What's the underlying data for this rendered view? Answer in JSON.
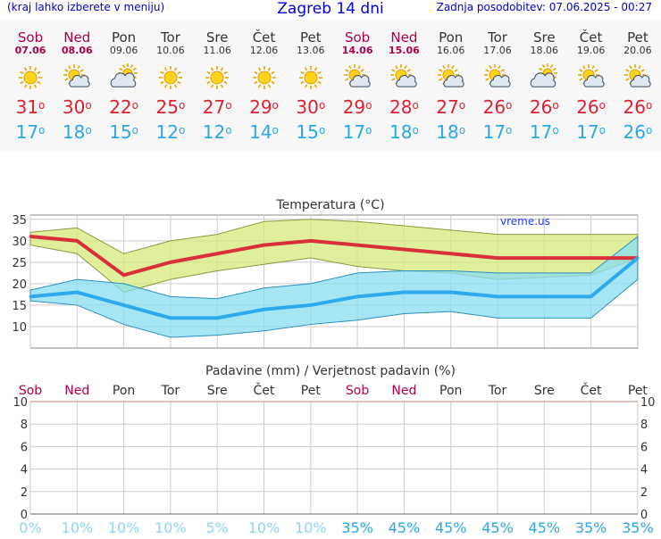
{
  "header": {
    "left_note": "(kraj lahko izberete v meniju)",
    "title": "Zagreb 14 dni",
    "updated": "Zadnja posodobitev: 07.06.2025 - 00:27"
  },
  "colors": {
    "weekend": "#b0004a",
    "max_line": "#d8303a",
    "min_line": "#2fa9ec",
    "max_band": "#d4ea7a",
    "min_band": "#88ddf0",
    "brand": "#1a3cff"
  },
  "days": [
    {
      "name": "Sob",
      "date": "07.06",
      "weekend": true,
      "icon": "sun-icon",
      "max": "31",
      "min": "17"
    },
    {
      "name": "Ned",
      "date": "08.06",
      "weekend": true,
      "icon": "sun-cloud-icon",
      "max": "30",
      "min": "18"
    },
    {
      "name": "Pon",
      "date": "09.06",
      "weekend": false,
      "icon": "cloud-sun-icon",
      "max": "22",
      "min": "15"
    },
    {
      "name": "Tor",
      "date": "10.06",
      "weekend": false,
      "icon": "sun-icon",
      "max": "25",
      "min": "12"
    },
    {
      "name": "Sre",
      "date": "11.06",
      "weekend": false,
      "icon": "sun-icon",
      "max": "27",
      "min": "12"
    },
    {
      "name": "Čet",
      "date": "12.06",
      "weekend": false,
      "icon": "sun-icon",
      "max": "29",
      "min": "14"
    },
    {
      "name": "Pet",
      "date": "13.06",
      "weekend": false,
      "icon": "sun-icon",
      "max": "30",
      "min": "15"
    },
    {
      "name": "Sob",
      "date": "14.06",
      "weekend": true,
      "icon": "sun-cloud-icon",
      "max": "29",
      "min": "17"
    },
    {
      "name": "Ned",
      "date": "15.06",
      "weekend": true,
      "icon": "sun-cloud-icon",
      "max": "28",
      "min": "18"
    },
    {
      "name": "Pon",
      "date": "16.06",
      "weekend": false,
      "icon": "sun-cloud-icon",
      "max": "27",
      "min": "18"
    },
    {
      "name": "Tor",
      "date": "17.06",
      "weekend": false,
      "icon": "sun-cloud-icon",
      "max": "26",
      "min": "17"
    },
    {
      "name": "Sre",
      "date": "18.06",
      "weekend": false,
      "icon": "cloud-sun-icon",
      "max": "26",
      "min": "17"
    },
    {
      "name": "Čet",
      "date": "19.06",
      "weekend": false,
      "icon": "sun-cloud-icon",
      "max": "26",
      "min": "17"
    },
    {
      "name": "Pet",
      "date": "20.06",
      "weekend": false,
      "icon": "sun-cloud-icon",
      "max": "26",
      "min": "26"
    }
  ],
  "degree_symbol": "o",
  "chart_data": [
    {
      "type": "line",
      "title": "Temperatura (°C)",
      "watermark": "vreme.us",
      "x": [
        "07.06",
        "08.06",
        "09.06",
        "10.06",
        "11.06",
        "12.06",
        "13.06",
        "14.06",
        "15.06",
        "16.06",
        "17.06",
        "18.06",
        "19.06",
        "20.06"
      ],
      "ylim": [
        5,
        36
      ],
      "yticks": [
        10,
        15,
        20,
        25,
        30,
        35
      ],
      "grid": true,
      "series": [
        {
          "role": "max",
          "values": [
            31,
            30,
            22,
            25,
            27,
            29,
            30,
            29,
            28,
            27,
            26,
            26,
            26,
            26
          ]
        },
        {
          "role": "max_band_high",
          "values": [
            32,
            33,
            27,
            30,
            31.5,
            34.5,
            35,
            34.5,
            33.5,
            32.5,
            31.5,
            31.5,
            31.5,
            31.5
          ]
        },
        {
          "role": "max_band_low",
          "values": [
            29,
            27,
            18,
            21,
            23,
            24.5,
            26,
            24,
            23,
            22.5,
            21,
            21.5,
            22,
            26
          ]
        },
        {
          "role": "min",
          "values": [
            17,
            18,
            15,
            12,
            12,
            14,
            15,
            17,
            18,
            18,
            17,
            17,
            17,
            26
          ]
        },
        {
          "role": "min_band_high",
          "values": [
            18.5,
            21,
            20,
            17,
            16.5,
            19,
            20,
            22.5,
            23,
            23,
            22.5,
            22.5,
            22.5,
            31
          ]
        },
        {
          "role": "min_band_low",
          "values": [
            16,
            15,
            10.5,
            7.5,
            8,
            9,
            10.5,
            11.5,
            13,
            13.5,
            12,
            12,
            12,
            21
          ]
        }
      ]
    },
    {
      "type": "bar",
      "title": "Padavine (mm) / Verjetnost padavin (%)",
      "categories": [
        "Sob",
        "Ned",
        "Pon",
        "Tor",
        "Sre",
        "Čet",
        "Pet",
        "Sob",
        "Ned",
        "Pon",
        "Tor",
        "Sre",
        "Čet",
        "Pet"
      ],
      "values": [
        0,
        0,
        0,
        0,
        0,
        0,
        0,
        0,
        0,
        0,
        0,
        0,
        0,
        0
      ],
      "probability": [
        "0%",
        "10%",
        "10%",
        "10%",
        "5%",
        "10%",
        "10%",
        "35%",
        "45%",
        "45%",
        "45%",
        "45%",
        "35%",
        "35%"
      ],
      "ylim": [
        0,
        10
      ],
      "yticks": [
        0,
        2,
        4,
        6,
        8,
        10
      ],
      "grid": true
    }
  ]
}
